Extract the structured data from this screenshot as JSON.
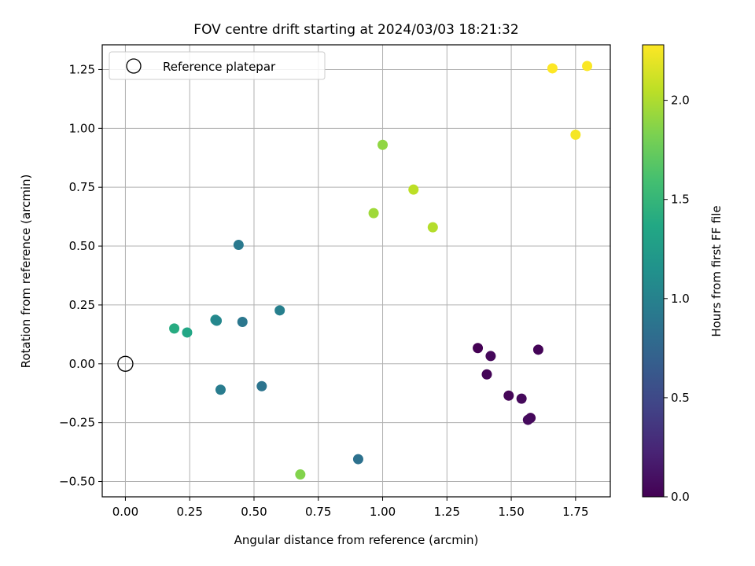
{
  "chart_data": {
    "type": "scatter",
    "title": "FOV centre drift starting at 2024/03/03 18:21:32",
    "xlabel": "Angular distance from reference (arcmin)",
    "ylabel": "Rotation from reference (arcmin)",
    "xlim": [
      -0.09,
      1.885
    ],
    "ylim": [
      -0.565,
      1.355
    ],
    "xticks": [
      0.0,
      0.25,
      0.5,
      0.75,
      1.0,
      1.25,
      1.5,
      1.75
    ],
    "xtick_labels": [
      "0.00",
      "0.25",
      "0.50",
      "0.75",
      "1.00",
      "1.25",
      "1.50",
      "1.75"
    ],
    "yticks": [
      -0.5,
      -0.25,
      0.0,
      0.25,
      0.5,
      0.75,
      1.0,
      1.25
    ],
    "ytick_labels": [
      "−0.50",
      "−0.25",
      "0.00",
      "0.25",
      "0.50",
      "0.75",
      "1.00",
      "1.25"
    ],
    "grid": true,
    "legend": {
      "placement": "upper-left",
      "entries": [
        "Reference platepar"
      ]
    },
    "reference_point": {
      "x": 0.0,
      "y": 0.0
    },
    "colorbar": {
      "label": "Hours from first FF file",
      "colormap": "viridis",
      "range": [
        0.0,
        2.28
      ],
      "ticks": [
        0.0,
        0.5,
        1.0,
        1.5,
        2.0
      ],
      "tick_labels": [
        "0.0",
        "0.5",
        "1.0",
        "1.5",
        "2.0"
      ]
    },
    "points": [
      {
        "x": 1.37,
        "y": 0.067,
        "hours": 0.0
      },
      {
        "x": 1.42,
        "y": 0.033,
        "hours": 0.04
      },
      {
        "x": 1.405,
        "y": -0.045,
        "hours": 0.02
      },
      {
        "x": 1.49,
        "y": -0.135,
        "hours": 0.03
      },
      {
        "x": 1.54,
        "y": -0.148,
        "hours": 0.05
      },
      {
        "x": 1.575,
        "y": -0.23,
        "hours": 0.04
      },
      {
        "x": 1.565,
        "y": -0.238,
        "hours": 0.06
      },
      {
        "x": 1.605,
        "y": 0.06,
        "hours": 0.02
      },
      {
        "x": 0.905,
        "y": -0.405,
        "hours": 0.85
      },
      {
        "x": 0.53,
        "y": -0.095,
        "hours": 0.88
      },
      {
        "x": 0.37,
        "y": -0.11,
        "hours": 0.95
      },
      {
        "x": 0.455,
        "y": 0.178,
        "hours": 0.9
      },
      {
        "x": 0.6,
        "y": 0.227,
        "hours": 0.98
      },
      {
        "x": 0.44,
        "y": 0.505,
        "hours": 0.92
      },
      {
        "x": 0.35,
        "y": 0.187,
        "hours": 1.1
      },
      {
        "x": 0.355,
        "y": 0.183,
        "hours": 1.05
      },
      {
        "x": 0.19,
        "y": 0.15,
        "hours": 1.4
      },
      {
        "x": 0.24,
        "y": 0.133,
        "hours": 1.35
      },
      {
        "x": 0.68,
        "y": -0.47,
        "hours": 1.85
      },
      {
        "x": 1.0,
        "y": 0.93,
        "hours": 1.9
      },
      {
        "x": 0.965,
        "y": 0.64,
        "hours": 1.95
      },
      {
        "x": 1.12,
        "y": 0.74,
        "hours": 2.05
      },
      {
        "x": 1.195,
        "y": 0.58,
        "hours": 2.02
      },
      {
        "x": 1.66,
        "y": 1.255,
        "hours": 2.28
      },
      {
        "x": 1.795,
        "y": 1.265,
        "hours": 2.27
      },
      {
        "x": 1.75,
        "y": 0.973,
        "hours": 2.25
      }
    ]
  }
}
